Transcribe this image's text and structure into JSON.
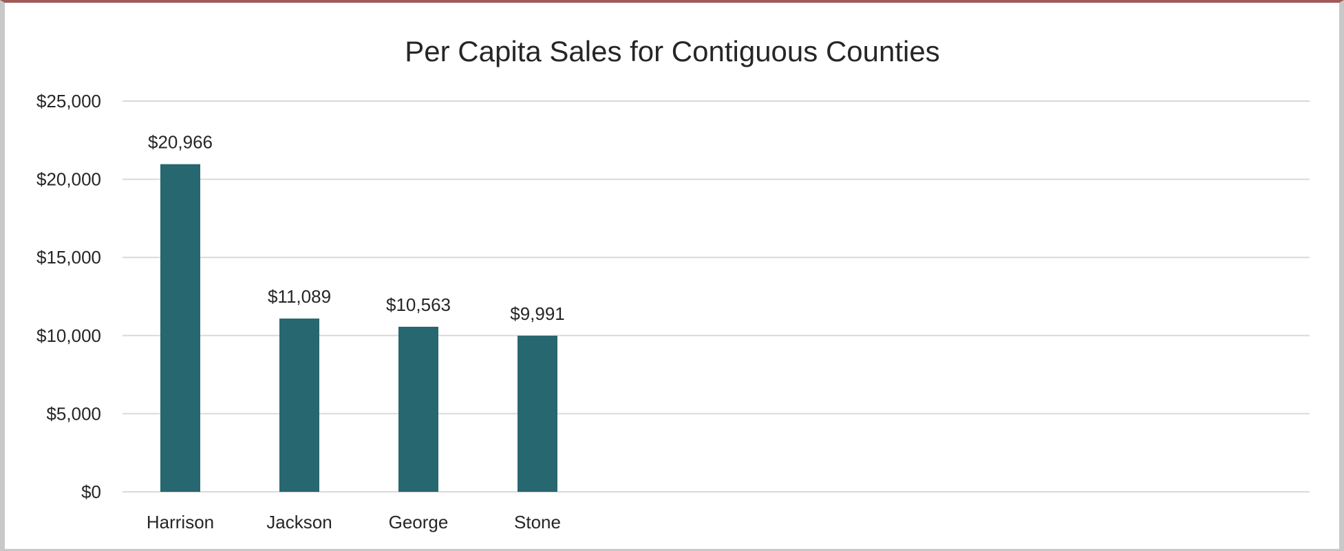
{
  "colors": {
    "bar": "#276770",
    "grid": "#d9d9d9",
    "text": "#262626",
    "frame_top": "#a05a5a"
  },
  "chart_data": {
    "type": "bar",
    "title": "Per Capita Sales for Contiguous Counties",
    "xlabel": "",
    "ylabel": "",
    "categories": [
      "Harrison",
      "Jackson",
      "George",
      "Stone"
    ],
    "values": [
      20966,
      11089,
      10563,
      9991
    ],
    "value_labels": [
      "$20,966",
      "$11,089",
      "$10,563",
      "$9,991"
    ],
    "ylim": [
      0,
      25000
    ],
    "y_ticks": [
      0,
      5000,
      10000,
      15000,
      20000,
      25000
    ],
    "y_tick_labels": [
      "$0",
      "$5,000",
      "$10,000",
      "$15,000",
      "$20,000",
      "$25,000"
    ],
    "grid": true,
    "legend": "none"
  }
}
